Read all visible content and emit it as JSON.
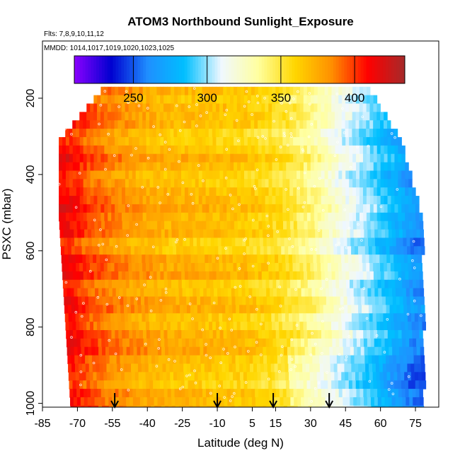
{
  "chart_data": {
    "type": "heatmap",
    "title": "ATOM3 Northbound Sunlight_Exposure",
    "subtitle_flights": "Flts: 7,8,9,10,11,12",
    "subtitle_dates": "MMDD: 1014,1017,1019,1020,1023,1025",
    "xlabel": "Latitude (deg N)",
    "ylabel": "PSXC (mbar)",
    "xlim": [
      -85,
      85
    ],
    "ylim": [
      1010,
      50
    ],
    "y_reversed": true,
    "x_ticks": [
      -85,
      -70,
      -55,
      -40,
      -25,
      -10,
      5,
      15,
      30,
      45,
      60,
      75
    ],
    "y_ticks": [
      200,
      400,
      600,
      800,
      1000
    ],
    "colorbar": {
      "range": [
        210,
        434
      ],
      "ticks": [
        250,
        300,
        350,
        400
      ],
      "colors": [
        "#8b00ff",
        "#0000d0",
        "#1f8fff",
        "#00bfff",
        "#f0f8ff",
        "#ffffa0",
        "#ffd700",
        "#ff9000",
        "#ff0000",
        "#a52a2a"
      ]
    },
    "arrows_latitude": [
      -54,
      -10,
      14,
      38
    ],
    "profile": {
      "latitude": [
        -75,
        -65,
        -55,
        -45,
        -35,
        -25,
        -15,
        -5,
        5,
        15,
        25,
        35,
        45,
        55,
        65,
        75
      ],
      "value": [
        410,
        395,
        385,
        378,
        372,
        370,
        368,
        366,
        362,
        355,
        345,
        330,
        312,
        298,
        280,
        262
      ]
    },
    "lat_extent": {
      "pressure": [
        170,
        300,
        500,
        700,
        900,
        1000
      ],
      "lat_min": [
        -60,
        -78,
        -78,
        -76,
        -74,
        -73
      ],
      "lat_max": [
        55,
        68,
        77,
        78,
        78,
        78
      ]
    }
  }
}
